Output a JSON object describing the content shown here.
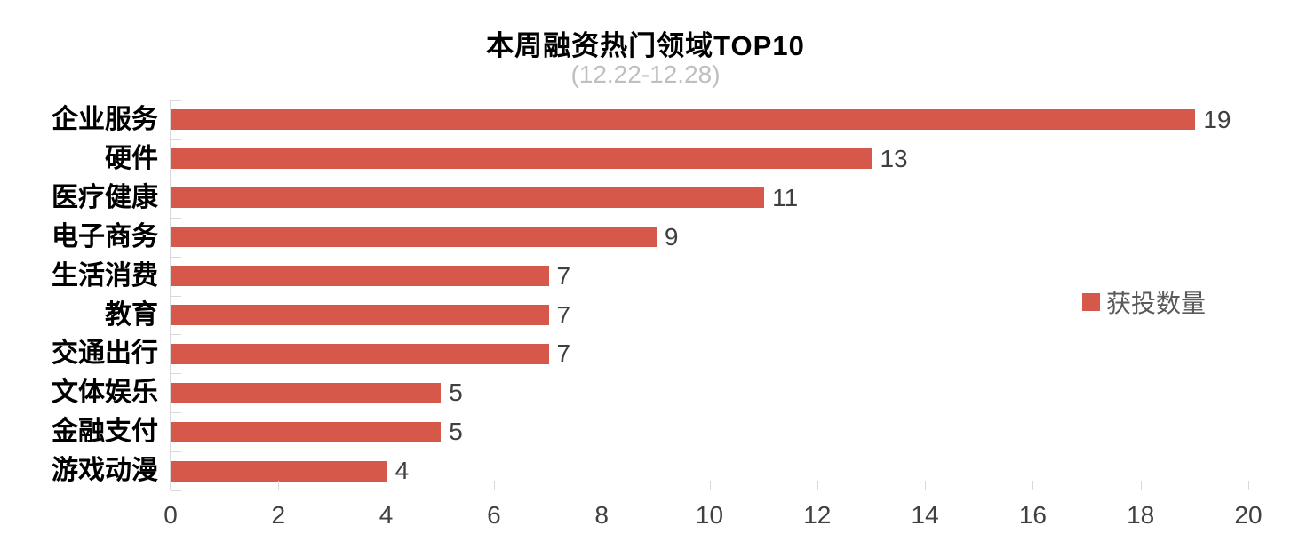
{
  "chart_data": {
    "type": "bar",
    "orientation": "horizontal",
    "title": "本周融资热门领域TOP10",
    "subtitle": "(12.22-12.28)",
    "categories": [
      "企业服务",
      "硬件",
      "医疗健康",
      "电子商务",
      "生活消费",
      "教育",
      "交通出行",
      "文体娱乐",
      "金融支付",
      "游戏动漫"
    ],
    "series": [
      {
        "name": "获投数量",
        "values": [
          19,
          13,
          11,
          9,
          7,
          7,
          7,
          5,
          5,
          4
        ]
      }
    ],
    "values": [
      19,
      13,
      11,
      9,
      7,
      7,
      7,
      5,
      5,
      4
    ],
    "data_labels": [
      "19",
      "13",
      "11",
      "9",
      "7",
      "7",
      "7",
      "5",
      "5",
      "4"
    ],
    "xlim": [
      0,
      20
    ],
    "x_ticks": [
      0,
      2,
      4,
      6,
      8,
      10,
      12,
      14,
      16,
      18,
      20
    ],
    "grid": false,
    "legend": [
      {
        "label": "获投数量",
        "color": "#d6584a"
      }
    ],
    "legend_position": "right"
  },
  "colors": {
    "bar": "#d6584a",
    "title": "#000000",
    "subtitle": "#bfbfbf",
    "category_label": "#000000",
    "value_label": "#3f3f3f",
    "tick_label": "#404040",
    "legend_text": "#595959",
    "axis_line": "#d9d9d9"
  }
}
